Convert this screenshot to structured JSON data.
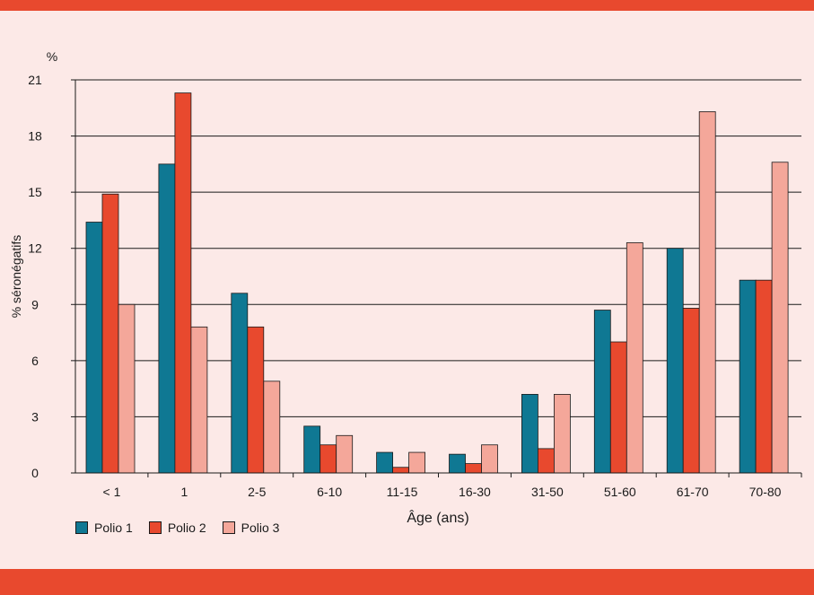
{
  "chart_data": {
    "type": "bar",
    "title": "",
    "xlabel": "Âge (ans)",
    "ylabel": "% séronégatifs",
    "yunit": "%",
    "ylim": [
      0,
      21
    ],
    "yticks": [
      0,
      3,
      6,
      9,
      12,
      15,
      18,
      21
    ],
    "grid": true,
    "legend_position": "bottom-left",
    "categories": [
      "< 1",
      "1",
      "2-5",
      "6-10",
      "11-15",
      "16-30",
      "31-50",
      "51-60",
      "61-70",
      "70-80"
    ],
    "series": [
      {
        "name": "Polio 1",
        "color": "#0f7893",
        "values": [
          13.4,
          16.5,
          9.6,
          2.5,
          1.1,
          1.0,
          4.2,
          8.7,
          12.0,
          10.3
        ]
      },
      {
        "name": "Polio 2",
        "color": "#e8492e",
        "values": [
          14.9,
          20.3,
          7.8,
          1.5,
          0.3,
          0.5,
          1.3,
          7.0,
          8.8,
          10.3
        ]
      },
      {
        "name": "Polio 3",
        "color": "#f4a79a",
        "values": [
          9.0,
          7.8,
          4.9,
          2.0,
          1.1,
          1.5,
          4.2,
          12.3,
          19.3,
          16.6
        ]
      }
    ]
  }
}
